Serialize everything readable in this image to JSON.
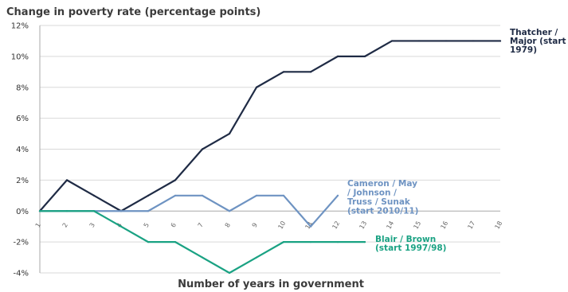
{
  "chart_data": {
    "type": "line",
    "title": "Change in poverty rate (percentage points)",
    "xlabel": "Number of years in government",
    "ylabel": "",
    "x": [
      1,
      2,
      3,
      4,
      5,
      6,
      7,
      8,
      9,
      10,
      11,
      12,
      13,
      14,
      15,
      16,
      17,
      18
    ],
    "xlim": [
      1,
      18
    ],
    "ylim": [
      -4,
      12
    ],
    "yticks": [
      -4,
      -2,
      0,
      2,
      4,
      6,
      8,
      10,
      12
    ],
    "ytick_labels": [
      "-4%",
      "-2%",
      "0%",
      "2%",
      "4%",
      "6%",
      "8%",
      "10%",
      "12%"
    ],
    "xtick_labels": [
      "1",
      "2",
      "3",
      "4",
      "5",
      "6",
      "7",
      "8",
      "9",
      "10",
      "11",
      "12",
      "13",
      "14",
      "15",
      "16",
      "17",
      "18"
    ],
    "grid": "horizontal",
    "series": [
      {
        "name": "Thatcher / Major (start 1979)",
        "label_lines": [
          "Thatcher /",
          "Major (start",
          "1979)"
        ],
        "color": "#1f2b45",
        "x": [
          1,
          2,
          3,
          4,
          5,
          6,
          7,
          8,
          9,
          10,
          11,
          12,
          13,
          14,
          15,
          16,
          17,
          18
        ],
        "values": [
          0,
          2,
          1,
          0,
          1,
          2,
          4,
          5,
          8,
          9,
          9,
          10,
          10,
          11,
          11,
          11,
          11,
          11
        ]
      },
      {
        "name": "Cameron / May / Johnson / Truss / Sunak (start 2010/11)",
        "label_lines": [
          "Cameron / May",
          "/ Johnson /",
          "Truss / Sunak",
          "(start 2010/11)"
        ],
        "color": "#6e93c2",
        "x": [
          1,
          2,
          3,
          4,
          5,
          6,
          7,
          8,
          9,
          10,
          11,
          12
        ],
        "values": [
          0,
          0,
          0,
          0,
          0,
          1,
          1,
          0,
          1,
          1,
          -1,
          1
        ]
      },
      {
        "name": "Blair / Brown (start 1997/98)",
        "label_lines": [
          "Blair / Brown",
          "(start 1997/98)"
        ],
        "color": "#1aa283",
        "x": [
          1,
          2,
          3,
          4,
          5,
          6,
          7,
          8,
          9,
          10,
          11,
          12,
          13
        ],
        "values": [
          0,
          0,
          0,
          -1,
          -2,
          -2,
          -3,
          -4,
          -3,
          -2,
          -2,
          -2,
          -2
        ]
      }
    ]
  }
}
